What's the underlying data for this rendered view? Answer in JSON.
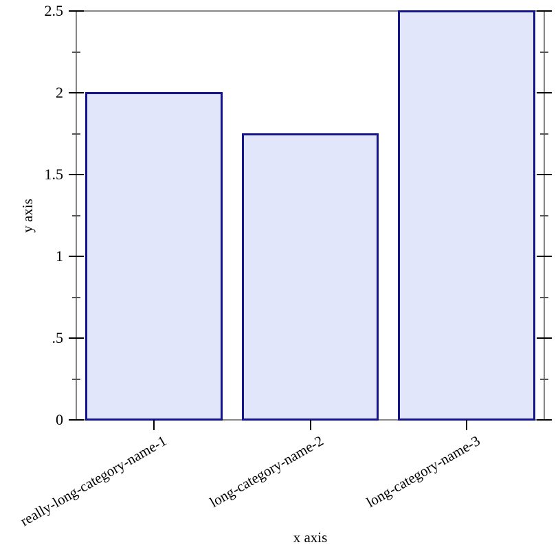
{
  "chart_data": {
    "type": "bar",
    "xlabel": "x axis",
    "ylabel": "y axis",
    "categories": [
      "really-long-category-name-1",
      "long-category-name-2",
      "long-category-name-3"
    ],
    "values": [
      2,
      1.75,
      2.5
    ],
    "ylim": [
      0,
      2.5
    ],
    "y_major_ticks": {
      "values": [
        0,
        0.5,
        1,
        1.5,
        2,
        2.5
      ],
      "labels": [
        "0",
        ".5",
        "1",
        "1.5",
        "2",
        "2.5"
      ]
    },
    "y_minor_ticks": [
      0.25,
      0.75,
      1.25,
      1.75,
      2.25
    ],
    "x_tick_label_angle_deg": -30,
    "grid": false,
    "legend": "none",
    "colors": {
      "background": "#ffffff",
      "frame": "#878787",
      "major_tick": "#000000",
      "minor_tick": "#555555",
      "bar_fill": "#e1e6fa",
      "bar_border": "#14148c",
      "text": "#000000"
    }
  }
}
